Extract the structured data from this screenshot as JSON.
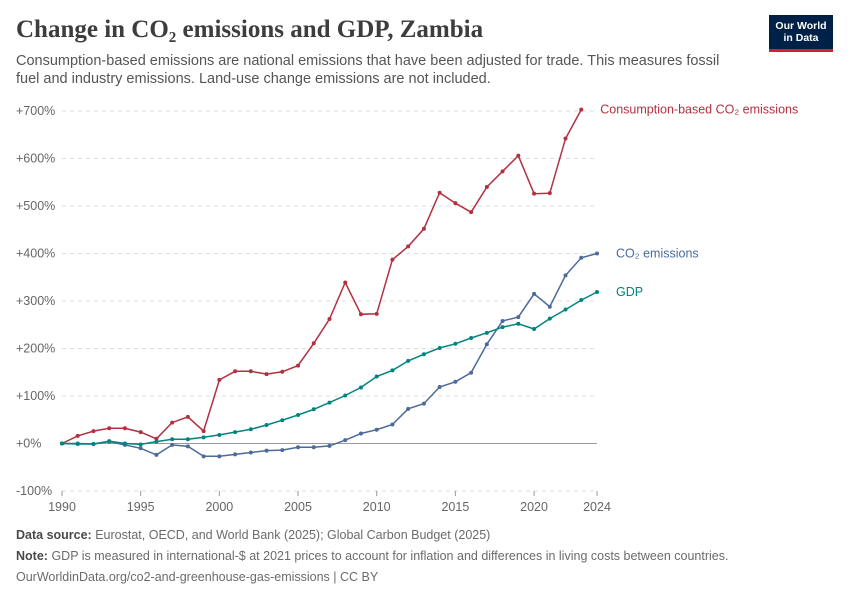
{
  "header": {
    "title": "Change in CO₂ emissions and GDP, Zambia",
    "subtitle": "Consumption-based emissions are national emissions that have been adjusted for trade. This measures fossil fuel and industry emissions. Land-use change emissions are not included.",
    "logo_line1": "Our World",
    "logo_line2": "in Data"
  },
  "footer": {
    "source_label": "Data source:",
    "source_text": "Eurostat, OECD, and World Bank (2025); Global Carbon Budget (2025)",
    "note_label": "Note:",
    "note_text": "GDP is measured in international-$ at 2021 prices to account for inflation and differences in living costs between countries.",
    "link_text": "OurWorldinData.org/co2-and-greenhouse-gas-emissions",
    "license_text": " | CC BY"
  },
  "chart_data": {
    "type": "line",
    "x": [
      1990,
      1991,
      1992,
      1993,
      1994,
      1995,
      1996,
      1997,
      1998,
      1999,
      2000,
      2001,
      2002,
      2003,
      2004,
      2005,
      2006,
      2007,
      2008,
      2009,
      2010,
      2011,
      2012,
      2013,
      2014,
      2015,
      2016,
      2017,
      2018,
      2019,
      2020,
      2021,
      2022,
      2023,
      2024
    ],
    "xticks": [
      1990,
      1995,
      2000,
      2005,
      2010,
      2015,
      2020,
      2024
    ],
    "yticks": [
      -100,
      0,
      100,
      200,
      300,
      400,
      500,
      600,
      700
    ],
    "ytick_labels": [
      "-100%",
      "+0%",
      "+100%",
      "+200%",
      "+300%",
      "+400%",
      "+500%",
      "+600%",
      "+700%"
    ],
    "ylim": [
      -100,
      700
    ],
    "xlim": [
      1990,
      2024
    ],
    "grid": "horizontal dashed",
    "legend": "labels at right end of lines",
    "series": [
      {
        "name": "Consumption-based CO₂ emissions",
        "color": "#b13140",
        "values": [
          0,
          16,
          26,
          32,
          32,
          24,
          10,
          44,
          56,
          26,
          134,
          152,
          152,
          146,
          151,
          164,
          211,
          262,
          339,
          272,
          273,
          387,
          415,
          452,
          528,
          506,
          487,
          540,
          573,
          606,
          526,
          527,
          642,
          703,
          null
        ]
      },
      {
        "name": "CO₂ emissions",
        "color": "#4c6a9c",
        "values": [
          0,
          0,
          -1,
          4,
          -3,
          -10,
          -24,
          -3,
          -6,
          -27,
          -27,
          -23,
          -19,
          -15,
          -14,
          -8,
          -8,
          -5,
          7,
          21,
          29,
          40,
          73,
          84,
          119,
          130,
          149,
          209,
          258,
          266,
          315,
          288,
          354,
          391,
          400
        ]
      },
      {
        "name": "GDP",
        "color": "#00847e",
        "values": [
          0,
          -1,
          -1,
          5,
          0,
          -2,
          4,
          9,
          9,
          13,
          18,
          24,
          30,
          39,
          49,
          60,
          72,
          86,
          101,
          118,
          141,
          154,
          174,
          188,
          201,
          210,
          222,
          233,
          245,
          252,
          241,
          263,
          282,
          302,
          319
        ]
      }
    ]
  }
}
